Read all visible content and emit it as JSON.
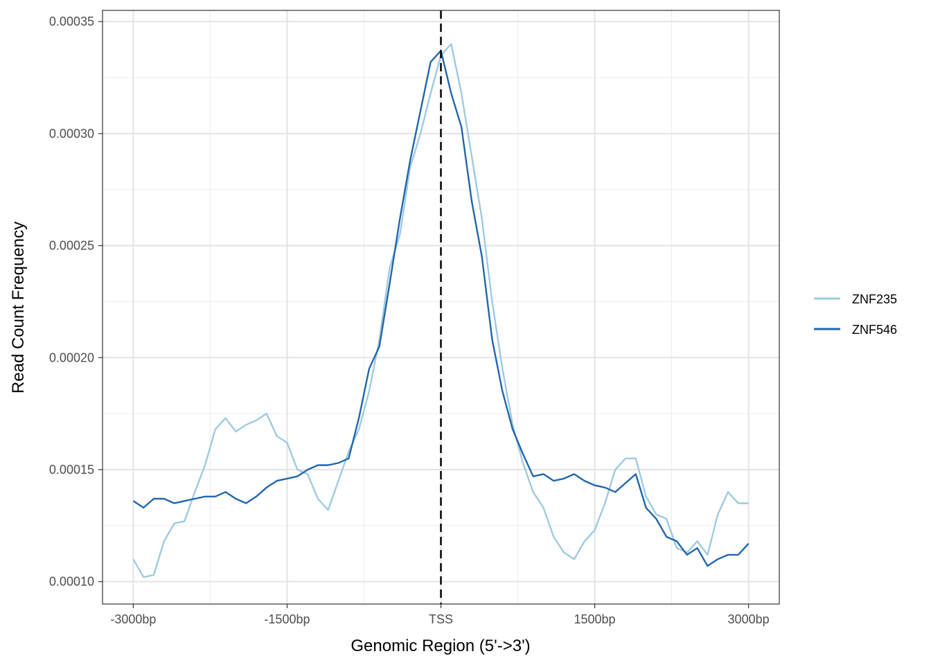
{
  "chart_data": {
    "type": "line",
    "title": "",
    "xlabel": "Genomic Region (5'->3')",
    "ylabel": "Read Count Frequency",
    "xlim": [
      -3300,
      3300
    ],
    "ylim": [
      9e-05,
      0.000355
    ],
    "x_ticks": [
      {
        "value": -3000,
        "label": "-3000bp"
      },
      {
        "value": -1500,
        "label": "-1500bp"
      },
      {
        "value": 0,
        "label": "TSS"
      },
      {
        "value": 1500,
        "label": "1500bp"
      },
      {
        "value": 3000,
        "label": "3000bp"
      }
    ],
    "y_ticks": [
      {
        "value": 0.0001,
        "label": "0.00010"
      },
      {
        "value": 0.00015,
        "label": "0.00015"
      },
      {
        "value": 0.0002,
        "label": "0.00020"
      },
      {
        "value": 0.00025,
        "label": "0.00025"
      },
      {
        "value": 0.0003,
        "label": "0.00030"
      },
      {
        "value": 0.00035,
        "label": "0.00035"
      }
    ],
    "grid": true,
    "reference_line": {
      "x": 0,
      "style": "dashed"
    },
    "legend_position": "right",
    "series": [
      {
        "name": "ZNF235",
        "color": "#9ecae1",
        "x": [
          -3000,
          -2900,
          -2800,
          -2700,
          -2600,
          -2500,
          -2400,
          -2300,
          -2200,
          -2100,
          -2000,
          -1900,
          -1800,
          -1700,
          -1600,
          -1500,
          -1400,
          -1300,
          -1200,
          -1100,
          -1000,
          -900,
          -800,
          -700,
          -600,
          -500,
          -400,
          -300,
          -200,
          -100,
          0,
          100,
          200,
          300,
          400,
          500,
          600,
          700,
          800,
          900,
          1000,
          1100,
          1200,
          1300,
          1400,
          1500,
          1600,
          1700,
          1800,
          1900,
          2000,
          2100,
          2200,
          2300,
          2400,
          2500,
          2600,
          2700,
          2800,
          2900,
          3000
        ],
        "y": [
          0.00011,
          0.000102,
          0.000103,
          0.000118,
          0.000126,
          0.000127,
          0.00014,
          0.000152,
          0.000168,
          0.000173,
          0.000167,
          0.00017,
          0.000172,
          0.000175,
          0.000165,
          0.000162,
          0.00015,
          0.000148,
          0.000137,
          0.000132,
          0.000145,
          0.000158,
          0.000168,
          0.000185,
          0.000208,
          0.00024,
          0.000255,
          0.000285,
          0.0003,
          0.000318,
          0.000335,
          0.00034,
          0.000318,
          0.00029,
          0.000262,
          0.000225,
          0.000195,
          0.00017,
          0.000153,
          0.00014,
          0.000133,
          0.00012,
          0.000113,
          0.00011,
          0.000118,
          0.000123,
          0.000135,
          0.00015,
          0.000155,
          0.000155,
          0.000138,
          0.00013,
          0.000128,
          0.000115,
          0.000113,
          0.000118,
          0.000112,
          0.00013,
          0.00014,
          0.000135,
          0.000135
        ]
      },
      {
        "name": "ZNF546",
        "color": "#2166ac",
        "x": [
          -3000,
          -2900,
          -2800,
          -2700,
          -2600,
          -2500,
          -2400,
          -2300,
          -2200,
          -2100,
          -2000,
          -1900,
          -1800,
          -1700,
          -1600,
          -1500,
          -1400,
          -1300,
          -1200,
          -1100,
          -1000,
          -900,
          -800,
          -700,
          -600,
          -500,
          -400,
          -300,
          -200,
          -100,
          0,
          100,
          200,
          300,
          400,
          500,
          600,
          700,
          800,
          900,
          1000,
          1100,
          1200,
          1300,
          1400,
          1500,
          1600,
          1700,
          1800,
          1900,
          2000,
          2100,
          2200,
          2300,
          2400,
          2500,
          2600,
          2700,
          2800,
          2900,
          3000
        ],
        "y": [
          0.000136,
          0.000133,
          0.000137,
          0.000137,
          0.000135,
          0.000136,
          0.000137,
          0.000138,
          0.000138,
          0.00014,
          0.000137,
          0.000135,
          0.000138,
          0.000142,
          0.000145,
          0.000146,
          0.000147,
          0.00015,
          0.000152,
          0.000152,
          0.000153,
          0.000155,
          0.000173,
          0.000195,
          0.000205,
          0.000233,
          0.000262,
          0.000288,
          0.00031,
          0.000332,
          0.000337,
          0.000318,
          0.000303,
          0.00027,
          0.000245,
          0.000208,
          0.000185,
          0.000168,
          0.000157,
          0.000147,
          0.000148,
          0.000145,
          0.000146,
          0.000148,
          0.000145,
          0.000143,
          0.000142,
          0.00014,
          0.000144,
          0.000148,
          0.000133,
          0.000128,
          0.00012,
          0.000118,
          0.000112,
          0.000115,
          0.000107,
          0.00011,
          0.000112,
          0.000112,
          0.000117
        ]
      }
    ]
  }
}
